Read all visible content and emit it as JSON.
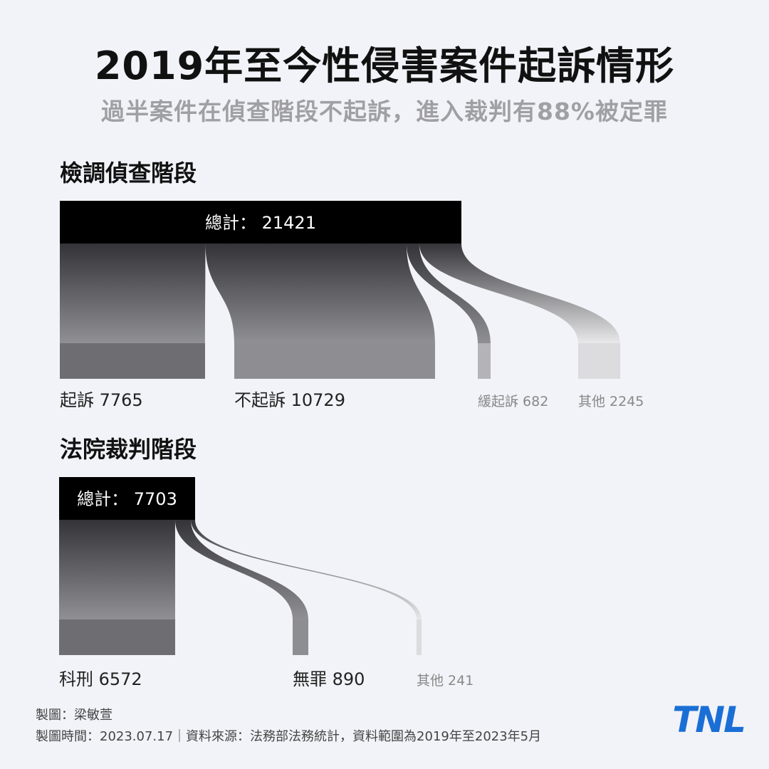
{
  "title": "2019年至今性侵害案件起訴情形",
  "subtitle": "過半案件在偵查階段不起訴，進入裁判有88%被定罪",
  "colors": {
    "background": "#f2f3f8",
    "total_bar": "#000000",
    "logo": "#1a6fd6"
  },
  "chart_data": [
    {
      "type": "sankey",
      "title": "檢調偵查階段",
      "total_label": "總計：",
      "total": 21421,
      "nodes": [
        {
          "label": "起訴",
          "value": 7765,
          "color": "#6e6e72"
        },
        {
          "label": "不起訴",
          "value": 10729,
          "color": "#8e8e92"
        },
        {
          "label": "緩起訴",
          "value": 682,
          "color": "#b4b4b8"
        },
        {
          "label": "其他",
          "value": 2245,
          "color": "#dcdcde"
        }
      ]
    },
    {
      "type": "sankey",
      "title": "法院裁判階段",
      "total_label": "總計：",
      "total": 7703,
      "nodes": [
        {
          "label": "科刑",
          "value": 6572,
          "color": "#6e6e72"
        },
        {
          "label": "無罪",
          "value": 890,
          "color": "#8e8e92"
        },
        {
          "label": "其他",
          "value": 241,
          "color": "#dcdcde"
        }
      ]
    }
  ],
  "credits": {
    "author": "製圖：梁敏萱",
    "source": "製圖時間：2023.07.17｜資料來源：法務部法務統計，資料範圍為2019年至2023年5月"
  },
  "logo": "TNL"
}
